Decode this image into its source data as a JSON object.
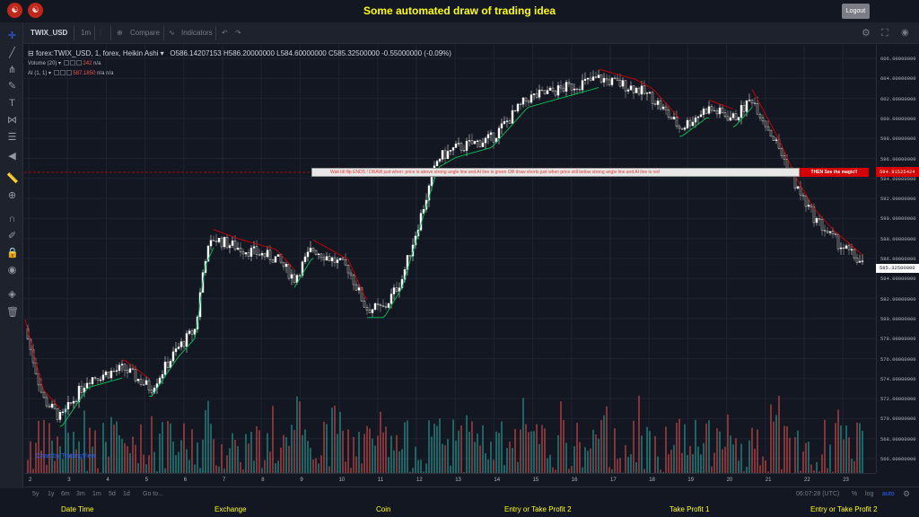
{
  "header": {
    "title": "Some automated draw of trading idea",
    "logout_label": "Logout"
  },
  "toolbar": {
    "symbol": "TWIX_USD",
    "interval": "1m",
    "compare": "Compare",
    "indicators": "Indicators"
  },
  "legend": {
    "main": "forex:TWIX_USD, 1, forex, Heikin Ashi",
    "ohlc": "O586.14207153  H586.20000000  L584.60000000  C585.32500000  -0.55000000 (-0.09%)",
    "volume_name": "Volume (20)",
    "volume_value": "242",
    "volume_na": "n/a",
    "ai_name": "AI (1, 1)",
    "ai_value": "587.1850",
    "ai_na1": "n/a",
    "ai_na2": "n/a"
  },
  "banner": {
    "text": "Wait till flip ENDS  !   DRAW just when:  price is above strong angle line and AI line is green          OR          draw shorts just when price still below strong angle line and AI line is red",
    "magic": "THEN See the magic!!",
    "price_tag": "594.91525424",
    "current_price": "585.32500000"
  },
  "watermark": "Chart by TradingView",
  "price_axis": [
    "606.00000000",
    "604.00000000",
    "602.00000000",
    "600.00000000",
    "598.00000000",
    "596.00000000",
    "594.00000000",
    "592.00000000",
    "590.00000000",
    "588.00000000",
    "586.00000000",
    "584.00000000",
    "582.00000000",
    "580.00000000",
    "578.00000000",
    "576.00000000",
    "574.00000000",
    "572.00000000",
    "570.00000000",
    "568.00000000",
    "566.00000000"
  ],
  "time_axis": [
    "2",
    "3",
    "4",
    "5",
    "6",
    "7",
    "8",
    "9",
    "10",
    "11",
    "12",
    "13",
    "14",
    "15",
    "16",
    "17",
    "18",
    "19",
    "20",
    "21",
    "22",
    "23"
  ],
  "bottom": {
    "ranges": [
      "5y",
      "1y",
      "6m",
      "3m",
      "1m",
      "5d",
      "1d"
    ],
    "goto": "Go to...",
    "clock": "06:07:28 (UTC)",
    "pct": "%",
    "log": "log",
    "auto": "auto"
  },
  "footer": [
    "Date Time",
    "Exchange",
    "Coin",
    "Entry or Take Profit 2",
    "Take Profit 1",
    "Entry or Take Profit 2"
  ],
  "colors": {
    "up": "#26a69a",
    "down": "#ef5350",
    "ai_green": "#00c853",
    "ai_red": "#d50000",
    "title": "#ffff00"
  }
}
